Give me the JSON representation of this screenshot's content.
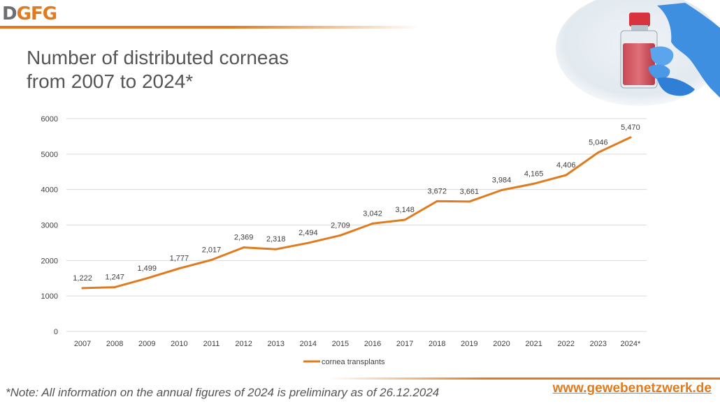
{
  "logo": {
    "d": "D",
    "g1": "G",
    "f": "F",
    "g2": "G"
  },
  "title": {
    "line1": "Number of distributed corneas",
    "line2": "from 2007 to 2024*"
  },
  "photo": {
    "icon": "lab-flask-gloved-hand-photo"
  },
  "chart_data": {
    "type": "line",
    "title": "",
    "xlabel": "",
    "ylabel": "",
    "x": [
      "2007",
      "2008",
      "2009",
      "2010",
      "2011",
      "2012",
      "2013",
      "2014",
      "2015",
      "2016",
      "2017",
      "2018",
      "2019",
      "2020",
      "2021",
      "2022",
      "2023",
      "2024*"
    ],
    "series": [
      {
        "name": "cornea transplants",
        "color": "#e07b1f",
        "values": [
          1222,
          1247,
          1499,
          1777,
          2017,
          2369,
          2318,
          2494,
          2709,
          3042,
          3148,
          3672,
          3661,
          3984,
          4165,
          4406,
          5046,
          5470
        ],
        "labels": [
          "1,222",
          "1,247",
          "1,499",
          "1,777",
          "2,017",
          "2,369",
          "2,318",
          "2,494",
          "2,709",
          "3,042",
          "3,148",
          "3,672",
          "3,661",
          "3,984",
          "4,165",
          "4,406",
          "5,046",
          "5,470"
        ]
      }
    ],
    "ylim": [
      0,
      6000
    ],
    "yticks": [
      "0",
      "1000",
      "2000",
      "3000",
      "4000",
      "5000",
      "6000"
    ],
    "grid": true,
    "legend": "bottom-center",
    "gridColor": "#d9d9d9",
    "textColor": "#404040"
  },
  "footer": {
    "note": "*Note: All information on the annual figures of 2024 is preliminary as of 26.12.2024",
    "website": "www.gewebenetzwerk.de"
  }
}
